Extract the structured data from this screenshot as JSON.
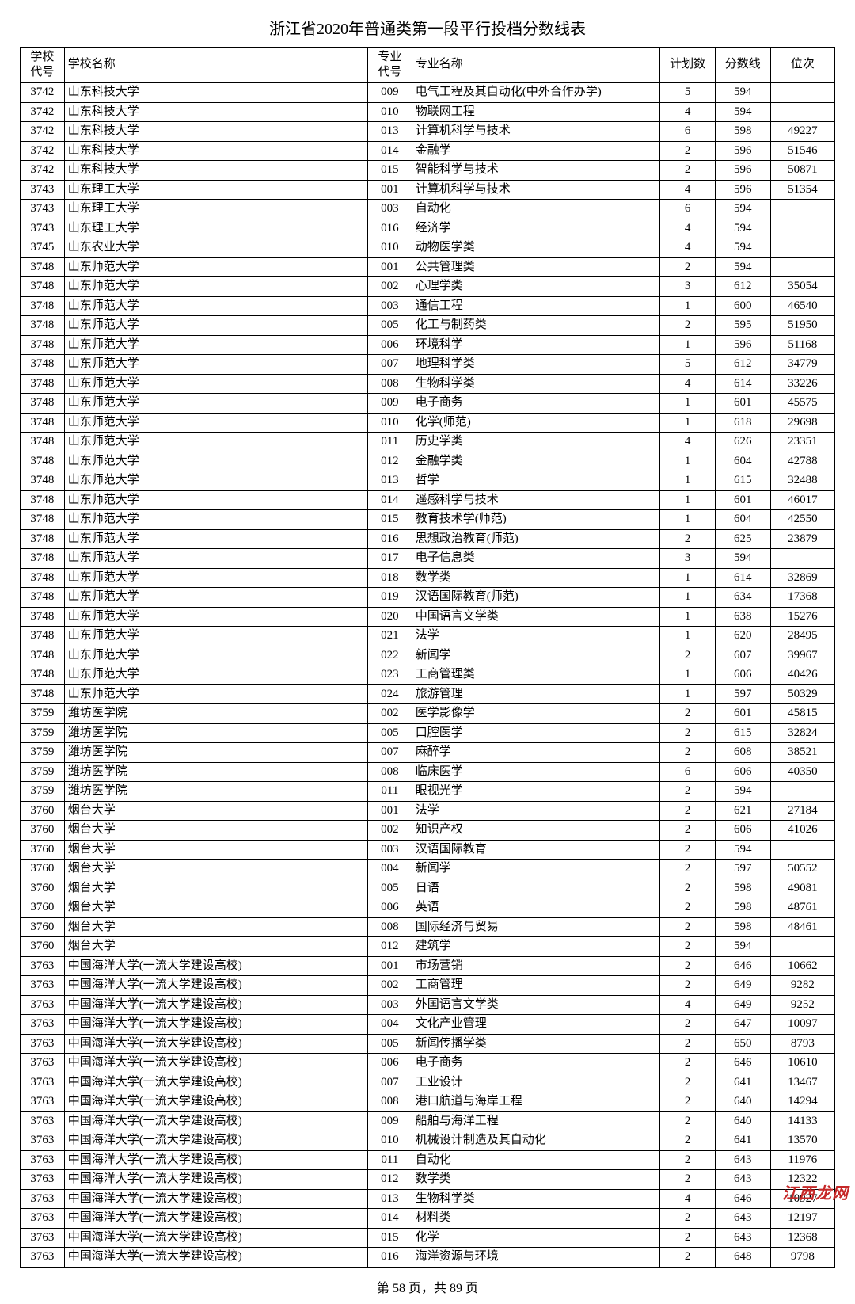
{
  "title": "浙江省2020年普通类第一段平行投档分数线表",
  "columns": [
    "学校\n代号",
    "学校名称",
    "专业\n代号",
    "专业名称",
    "计划数",
    "分数线",
    "位次"
  ],
  "footer": "第 58 页，共 89 页",
  "watermark": "江西龙网",
  "rows": [
    [
      "3742",
      "山东科技大学",
      "009",
      "电气工程及其自动化(中外合作办学)",
      "5",
      "594",
      ""
    ],
    [
      "3742",
      "山东科技大学",
      "010",
      "物联网工程",
      "4",
      "594",
      ""
    ],
    [
      "3742",
      "山东科技大学",
      "013",
      "计算机科学与技术",
      "6",
      "598",
      "49227"
    ],
    [
      "3742",
      "山东科技大学",
      "014",
      "金融学",
      "2",
      "596",
      "51546"
    ],
    [
      "3742",
      "山东科技大学",
      "015",
      "智能科学与技术",
      "2",
      "596",
      "50871"
    ],
    [
      "3743",
      "山东理工大学",
      "001",
      "计算机科学与技术",
      "4",
      "596",
      "51354"
    ],
    [
      "3743",
      "山东理工大学",
      "003",
      "自动化",
      "6",
      "594",
      ""
    ],
    [
      "3743",
      "山东理工大学",
      "016",
      "经济学",
      "4",
      "594",
      ""
    ],
    [
      "3745",
      "山东农业大学",
      "010",
      "动物医学类",
      "4",
      "594",
      ""
    ],
    [
      "3748",
      "山东师范大学",
      "001",
      "公共管理类",
      "2",
      "594",
      ""
    ],
    [
      "3748",
      "山东师范大学",
      "002",
      "心理学类",
      "3",
      "612",
      "35054"
    ],
    [
      "3748",
      "山东师范大学",
      "003",
      "通信工程",
      "1",
      "600",
      "46540"
    ],
    [
      "3748",
      "山东师范大学",
      "005",
      "化工与制药类",
      "2",
      "595",
      "51950"
    ],
    [
      "3748",
      "山东师范大学",
      "006",
      "环境科学",
      "1",
      "596",
      "51168"
    ],
    [
      "3748",
      "山东师范大学",
      "007",
      "地理科学类",
      "5",
      "612",
      "34779"
    ],
    [
      "3748",
      "山东师范大学",
      "008",
      "生物科学类",
      "4",
      "614",
      "33226"
    ],
    [
      "3748",
      "山东师范大学",
      "009",
      "电子商务",
      "1",
      "601",
      "45575"
    ],
    [
      "3748",
      "山东师范大学",
      "010",
      "化学(师范)",
      "1",
      "618",
      "29698"
    ],
    [
      "3748",
      "山东师范大学",
      "011",
      "历史学类",
      "4",
      "626",
      "23351"
    ],
    [
      "3748",
      "山东师范大学",
      "012",
      "金融学类",
      "1",
      "604",
      "42788"
    ],
    [
      "3748",
      "山东师范大学",
      "013",
      "哲学",
      "1",
      "615",
      "32488"
    ],
    [
      "3748",
      "山东师范大学",
      "014",
      "遥感科学与技术",
      "1",
      "601",
      "46017"
    ],
    [
      "3748",
      "山东师范大学",
      "015",
      "教育技术学(师范)",
      "1",
      "604",
      "42550"
    ],
    [
      "3748",
      "山东师范大学",
      "016",
      "思想政治教育(师范)",
      "2",
      "625",
      "23879"
    ],
    [
      "3748",
      "山东师范大学",
      "017",
      "电子信息类",
      "3",
      "594",
      ""
    ],
    [
      "3748",
      "山东师范大学",
      "018",
      "数学类",
      "1",
      "614",
      "32869"
    ],
    [
      "3748",
      "山东师范大学",
      "019",
      "汉语国际教育(师范)",
      "1",
      "634",
      "17368"
    ],
    [
      "3748",
      "山东师范大学",
      "020",
      "中国语言文学类",
      "1",
      "638",
      "15276"
    ],
    [
      "3748",
      "山东师范大学",
      "021",
      "法学",
      "1",
      "620",
      "28495"
    ],
    [
      "3748",
      "山东师范大学",
      "022",
      "新闻学",
      "2",
      "607",
      "39967"
    ],
    [
      "3748",
      "山东师范大学",
      "023",
      "工商管理类",
      "1",
      "606",
      "40426"
    ],
    [
      "3748",
      "山东师范大学",
      "024",
      "旅游管理",
      "1",
      "597",
      "50329"
    ],
    [
      "3759",
      "潍坊医学院",
      "002",
      "医学影像学",
      "2",
      "601",
      "45815"
    ],
    [
      "3759",
      "潍坊医学院",
      "005",
      "口腔医学",
      "2",
      "615",
      "32824"
    ],
    [
      "3759",
      "潍坊医学院",
      "007",
      "麻醉学",
      "2",
      "608",
      "38521"
    ],
    [
      "3759",
      "潍坊医学院",
      "008",
      "临床医学",
      "6",
      "606",
      "40350"
    ],
    [
      "3759",
      "潍坊医学院",
      "011",
      "眼视光学",
      "2",
      "594",
      ""
    ],
    [
      "3760",
      "烟台大学",
      "001",
      "法学",
      "2",
      "621",
      "27184"
    ],
    [
      "3760",
      "烟台大学",
      "002",
      "知识产权",
      "2",
      "606",
      "41026"
    ],
    [
      "3760",
      "烟台大学",
      "003",
      "汉语国际教育",
      "2",
      "594",
      ""
    ],
    [
      "3760",
      "烟台大学",
      "004",
      "新闻学",
      "2",
      "597",
      "50552"
    ],
    [
      "3760",
      "烟台大学",
      "005",
      "日语",
      "2",
      "598",
      "49081"
    ],
    [
      "3760",
      "烟台大学",
      "006",
      "英语",
      "2",
      "598",
      "48761"
    ],
    [
      "3760",
      "烟台大学",
      "008",
      "国际经济与贸易",
      "2",
      "598",
      "48461"
    ],
    [
      "3760",
      "烟台大学",
      "012",
      "建筑学",
      "2",
      "594",
      ""
    ],
    [
      "3763",
      "中国海洋大学(一流大学建设高校)",
      "001",
      "市场营销",
      "2",
      "646",
      "10662"
    ],
    [
      "3763",
      "中国海洋大学(一流大学建设高校)",
      "002",
      "工商管理",
      "2",
      "649",
      "9282"
    ],
    [
      "3763",
      "中国海洋大学(一流大学建设高校)",
      "003",
      "外国语言文学类",
      "4",
      "649",
      "9252"
    ],
    [
      "3763",
      "中国海洋大学(一流大学建设高校)",
      "004",
      "文化产业管理",
      "2",
      "647",
      "10097"
    ],
    [
      "3763",
      "中国海洋大学(一流大学建设高校)",
      "005",
      "新闻传播学类",
      "2",
      "650",
      "8793"
    ],
    [
      "3763",
      "中国海洋大学(一流大学建设高校)",
      "006",
      "电子商务",
      "2",
      "646",
      "10610"
    ],
    [
      "3763",
      "中国海洋大学(一流大学建设高校)",
      "007",
      "工业设计",
      "2",
      "641",
      "13467"
    ],
    [
      "3763",
      "中国海洋大学(一流大学建设高校)",
      "008",
      "港口航道与海岸工程",
      "2",
      "640",
      "14294"
    ],
    [
      "3763",
      "中国海洋大学(一流大学建设高校)",
      "009",
      "船舶与海洋工程",
      "2",
      "640",
      "14133"
    ],
    [
      "3763",
      "中国海洋大学(一流大学建设高校)",
      "010",
      "机械设计制造及其自动化",
      "2",
      "641",
      "13570"
    ],
    [
      "3763",
      "中国海洋大学(一流大学建设高校)",
      "011",
      "自动化",
      "2",
      "643",
      "11976"
    ],
    [
      "3763",
      "中国海洋大学(一流大学建设高校)",
      "012",
      "数学类",
      "2",
      "643",
      "12322"
    ],
    [
      "3763",
      "中国海洋大学(一流大学建设高校)",
      "013",
      "生物科学类",
      "4",
      "646",
      "10927"
    ],
    [
      "3763",
      "中国海洋大学(一流大学建设高校)",
      "014",
      "材料类",
      "2",
      "643",
      "12197"
    ],
    [
      "3763",
      "中国海洋大学(一流大学建设高校)",
      "015",
      "化学",
      "2",
      "643",
      "12368"
    ],
    [
      "3763",
      "中国海洋大学(一流大学建设高校)",
      "016",
      "海洋资源与环境",
      "2",
      "648",
      "9798"
    ]
  ]
}
